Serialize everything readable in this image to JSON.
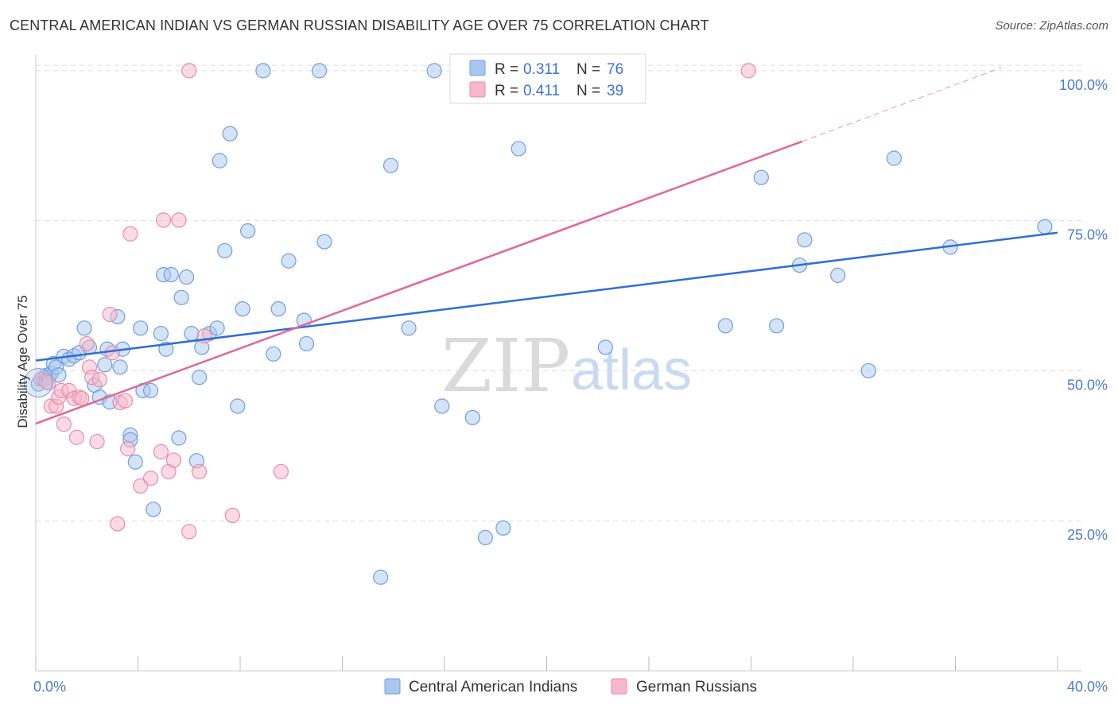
{
  "title": "CENTRAL AMERICAN INDIAN VS GERMAN RUSSIAN DISABILITY AGE OVER 75 CORRELATION CHART",
  "source": "Source: ZipAtlas.com",
  "watermark": {
    "zip": "ZIP",
    "atlas": "atlas"
  },
  "colors": {
    "blue_fill": "#a9c7ee",
    "blue_stroke": "#6f9fdc",
    "blue_line": "#2f6fd0",
    "pink_fill": "#f6b8cb",
    "pink_stroke": "#e98aa8",
    "pink_line": "#e0679a",
    "grid": "#dddddd",
    "axis_label": "#4a7cc9"
  },
  "legend": {
    "rows": [
      {
        "r_label": "R =",
        "r_value": "0.311",
        "n_label": "N =",
        "n_value": "76"
      },
      {
        "r_label": "R =",
        "r_value": "0.411",
        "n_label": "N =",
        "n_value": "39"
      }
    ]
  },
  "chart_data": {
    "type": "scatter",
    "title": "CENTRAL AMERICAN INDIAN VS GERMAN RUSSIAN DISABILITY AGE OVER 75 CORRELATION CHART",
    "xlabel": "",
    "ylabel": "Disability Age Over 75",
    "xlim": [
      0,
      40
    ],
    "ylim": [
      0,
      102.5
    ],
    "x_tick_labels": [
      {
        "value": 0,
        "label": "0.0%"
      },
      {
        "value": 40,
        "label": "40.0%"
      }
    ],
    "y_tick_labels": [
      {
        "value": 25,
        "label": "25.0%"
      },
      {
        "value": 50,
        "label": "50.0%"
      },
      {
        "value": 75,
        "label": "75.0%"
      },
      {
        "value": 100,
        "label": "100.0%"
      }
    ],
    "grid": true,
    "legend_position": "top-center",
    "series": [
      {
        "name": "Central American Indians",
        "color": "#a9c7ee",
        "r": 0.311,
        "n": 76,
        "trend": {
          "x0": 0,
          "y0": 51.7,
          "x1": 40,
          "y1": 73.0
        },
        "points": [
          [
            0.1,
            47.8
          ],
          [
            0.3,
            48.6
          ],
          [
            0.4,
            49.2
          ],
          [
            0.5,
            48.9
          ],
          [
            0.6,
            49.6
          ],
          [
            0.7,
            51.2
          ],
          [
            0.8,
            50.6
          ],
          [
            0.9,
            49.3
          ],
          [
            1.1,
            52.4
          ],
          [
            1.3,
            51.9
          ],
          [
            1.5,
            52.5
          ],
          [
            1.7,
            53.0
          ],
          [
            1.9,
            57.1
          ],
          [
            2.1,
            53.9
          ],
          [
            2.3,
            47.6
          ],
          [
            2.5,
            45.6
          ],
          [
            2.7,
            51.0
          ],
          [
            2.8,
            53.6
          ],
          [
            2.9,
            44.8
          ],
          [
            3.2,
            59.0
          ],
          [
            3.3,
            50.6
          ],
          [
            3.4,
            53.6
          ],
          [
            3.7,
            39.3
          ],
          [
            3.7,
            38.5
          ],
          [
            3.9,
            34.8
          ],
          [
            4.1,
            57.1
          ],
          [
            4.2,
            46.7
          ],
          [
            4.5,
            46.7
          ],
          [
            4.6,
            26.9
          ],
          [
            4.9,
            56.2
          ],
          [
            5.0,
            66.0
          ],
          [
            5.1,
            53.6
          ],
          [
            5.3,
            66.0
          ],
          [
            5.6,
            38.8
          ],
          [
            5.7,
            62.2
          ],
          [
            5.9,
            65.6
          ],
          [
            6.1,
            56.2
          ],
          [
            6.3,
            35.0
          ],
          [
            6.4,
            48.9
          ],
          [
            6.5,
            53.9
          ],
          [
            6.8,
            56.2
          ],
          [
            7.1,
            57.1
          ],
          [
            7.2,
            85.0
          ],
          [
            7.4,
            70.0
          ],
          [
            7.6,
            89.5
          ],
          [
            7.9,
            44.1
          ],
          [
            8.1,
            60.3
          ],
          [
            8.3,
            73.3
          ],
          [
            8.9,
            100.0
          ],
          [
            9.3,
            52.8
          ],
          [
            9.5,
            60.3
          ],
          [
            9.9,
            68.3
          ],
          [
            10.5,
            58.4
          ],
          [
            10.6,
            54.5
          ],
          [
            11.1,
            100.0
          ],
          [
            11.3,
            71.5
          ],
          [
            13.5,
            15.6
          ],
          [
            13.9,
            84.2
          ],
          [
            14.6,
            57.1
          ],
          [
            15.6,
            100.0
          ],
          [
            15.9,
            44.1
          ],
          [
            17.1,
            42.2
          ],
          [
            17.6,
            22.2
          ],
          [
            18.3,
            23.8
          ],
          [
            18.9,
            87.0
          ],
          [
            22.3,
            53.9
          ],
          [
            27.0,
            57.5
          ],
          [
            28.4,
            82.2
          ],
          [
            29.0,
            57.5
          ],
          [
            29.9,
            67.6
          ],
          [
            30.1,
            71.8
          ],
          [
            31.4,
            65.9
          ],
          [
            32.6,
            50.0
          ],
          [
            33.6,
            85.4
          ],
          [
            35.8,
            70.6
          ],
          [
            39.5,
            74.0
          ]
        ]
      },
      {
        "name": "German Russians",
        "color": "#f6b8cb",
        "r": 0.411,
        "n": 39,
        "trend": {
          "x0": 0,
          "y0": 41.2,
          "x1": 30.0,
          "y1": 88.2,
          "dash_to_x": 37.8,
          "dash_to_y": 100.5
        },
        "points": [
          [
            0.2,
            48.6
          ],
          [
            0.4,
            48.2
          ],
          [
            0.5,
            48.0
          ],
          [
            0.6,
            44.1
          ],
          [
            0.8,
            44.1
          ],
          [
            0.9,
            45.6
          ],
          [
            1.0,
            46.7
          ],
          [
            1.1,
            41.1
          ],
          [
            1.3,
            46.7
          ],
          [
            1.5,
            45.4
          ],
          [
            1.6,
            38.9
          ],
          [
            1.7,
            45.6
          ],
          [
            1.8,
            45.4
          ],
          [
            2.0,
            54.5
          ],
          [
            2.1,
            50.6
          ],
          [
            2.2,
            48.9
          ],
          [
            2.4,
            38.2
          ],
          [
            2.5,
            48.5
          ],
          [
            2.9,
            59.4
          ],
          [
            3.0,
            53.0
          ],
          [
            3.2,
            24.5
          ],
          [
            3.3,
            44.7
          ],
          [
            3.5,
            45.0
          ],
          [
            3.6,
            37.0
          ],
          [
            3.7,
            72.8
          ],
          [
            4.1,
            30.8
          ],
          [
            4.5,
            32.1
          ],
          [
            4.9,
            36.5
          ],
          [
            5.0,
            75.1
          ],
          [
            5.2,
            33.2
          ],
          [
            5.4,
            35.1
          ],
          [
            5.6,
            75.1
          ],
          [
            6.0,
            23.2
          ],
          [
            6.4,
            33.2
          ],
          [
            6.6,
            55.8
          ],
          [
            7.7,
            25.9
          ],
          [
            9.6,
            33.2
          ],
          [
            6.0,
            100.0
          ],
          [
            27.9,
            100.0
          ]
        ]
      }
    ]
  },
  "bottom_legend": {
    "items": [
      {
        "label": "Central American Indians"
      },
      {
        "label": "German Russians"
      }
    ]
  }
}
